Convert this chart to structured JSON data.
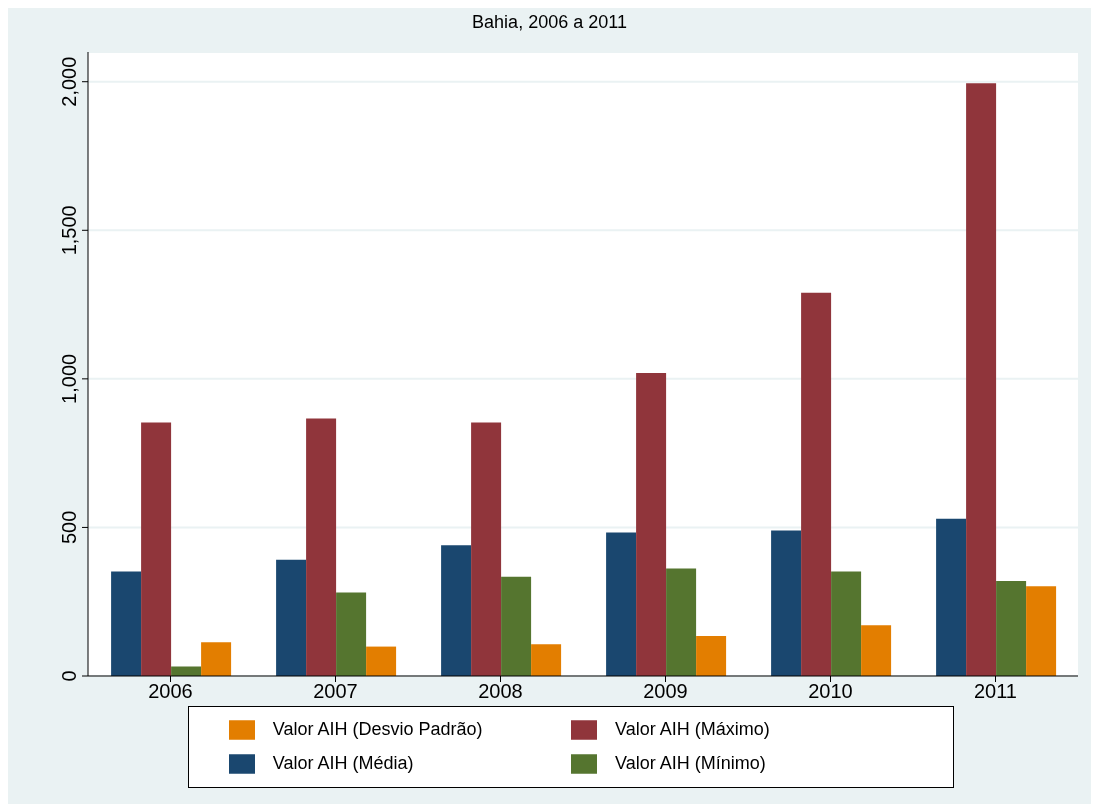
{
  "chart_data": {
    "type": "bar",
    "title": "Bahia, 2006 a 2011",
    "categories": [
      "2006",
      "2007",
      "2008",
      "2009",
      "2010",
      "2011"
    ],
    "series": [
      {
        "name": "Valor AIH (Média)",
        "color": "#1a476f",
        "values": [
          352,
          391,
          440,
          483,
          490,
          529
        ]
      },
      {
        "name": "Valor AIH (Máximo)",
        "color": "#90353b",
        "values": [
          853,
          867,
          853,
          1020,
          1290,
          1995
        ]
      },
      {
        "name": "Valor AIH (Mínimo)",
        "color": "#55752f",
        "values": [
          32,
          281,
          334,
          362,
          352,
          320
        ]
      },
      {
        "name": "Valor AIH (Desvio Padrão)",
        "color": "#e37e00",
        "values": [
          114,
          99,
          107,
          135,
          171,
          302
        ]
      }
    ],
    "ylim": [
      0,
      2100
    ],
    "yticks": [
      {
        "value": 0,
        "label": "0"
      },
      {
        "value": 500,
        "label": "500"
      },
      {
        "value": 1000,
        "label": "1,000"
      },
      {
        "value": 1500,
        "label": "1,500"
      },
      {
        "value": 2000,
        "label": "2,000"
      }
    ],
    "grid": "y",
    "legend": "bottom"
  }
}
